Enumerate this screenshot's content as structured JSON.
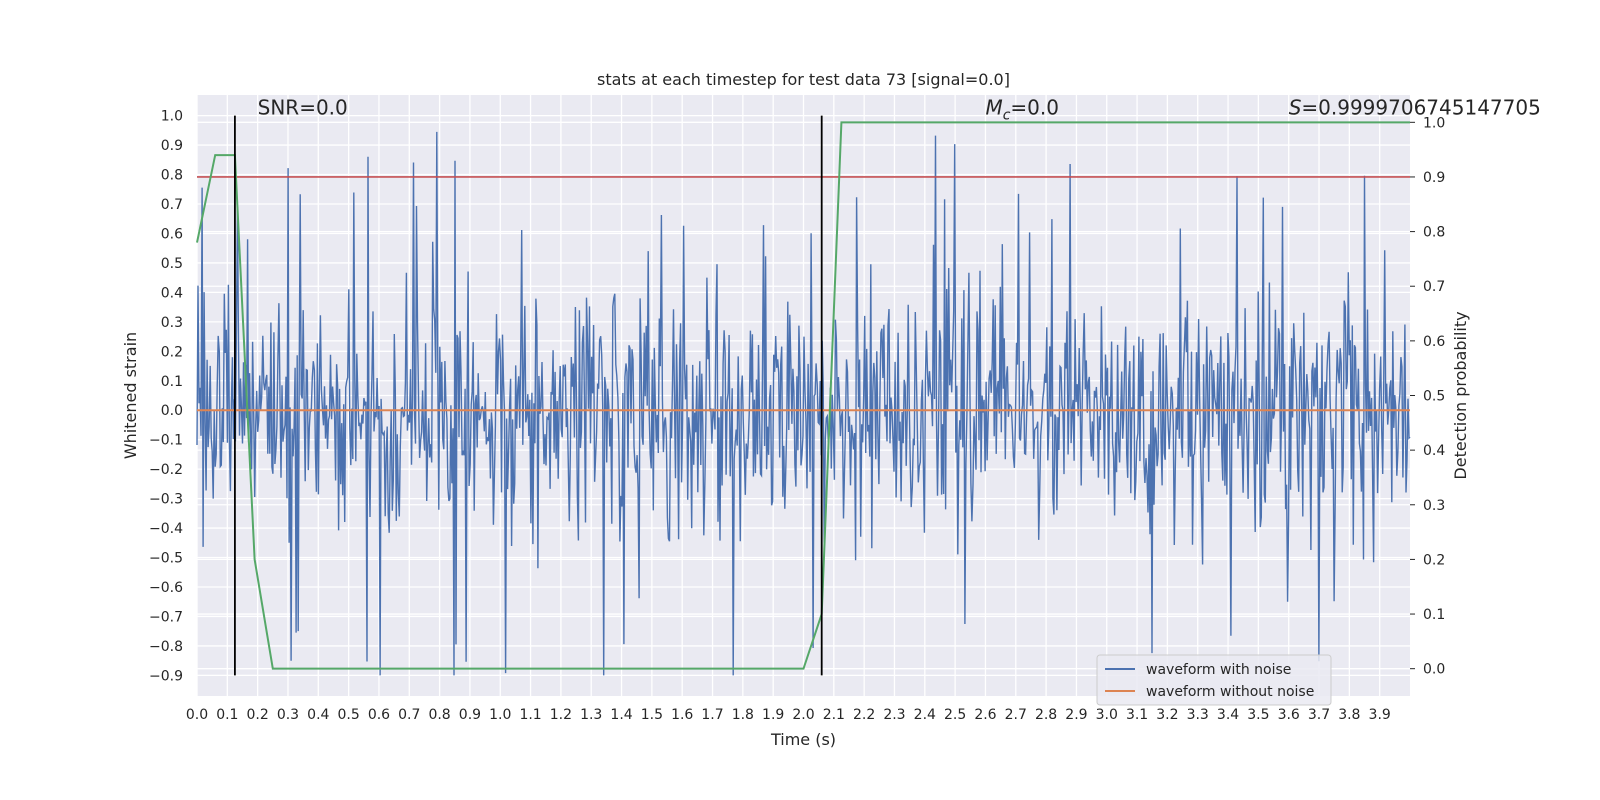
{
  "chart_data": {
    "type": "line",
    "title": "stats at each timestep for test data 73 [signal=0.0]",
    "xlabel": "Time (s)",
    "ylabel": "Whitened strain",
    "y2label": "Detection probability",
    "xlim": [
      0.0,
      4.0
    ],
    "ylim": [
      -0.97,
      1.07
    ],
    "y2lim": [
      -0.05,
      1.05
    ],
    "grid": true,
    "x_ticks": [
      "0.0",
      "0.1",
      "0.2",
      "0.3",
      "0.4",
      "0.5",
      "0.6",
      "0.7",
      "0.8",
      "0.9",
      "1.0",
      "1.1",
      "1.2",
      "1.3",
      "1.4",
      "1.5",
      "1.6",
      "1.7",
      "1.8",
      "1.9",
      "2.0",
      "2.1",
      "2.2",
      "2.3",
      "2.4",
      "2.5",
      "2.6",
      "2.7",
      "2.8",
      "2.9",
      "3.0",
      "3.1",
      "3.2",
      "3.3",
      "3.4",
      "3.5",
      "3.6",
      "3.7",
      "3.8",
      "3.9"
    ],
    "y_ticks": [
      "−0.9",
      "−0.8",
      "−0.7",
      "−0.6",
      "−0.5",
      "−0.4",
      "−0.3",
      "−0.2",
      "−0.1",
      "0.0",
      "0.1",
      "0.2",
      "0.3",
      "0.4",
      "0.5",
      "0.6",
      "0.7",
      "0.8",
      "0.9",
      "1.0"
    ],
    "y2_ticks": [
      "0.0",
      "0.1",
      "0.2",
      "0.3",
      "0.4",
      "0.5",
      "0.6",
      "0.7",
      "0.8",
      "0.9",
      "1.0"
    ],
    "annotations": {
      "snr": "SNR=0.0",
      "mc_symbol": "M",
      "mc_sub": "c",
      "mc_value": "=0.0",
      "s_symbol": "S",
      "s_value": "=0.9999706745147705"
    },
    "legend": {
      "placement": "lower-right",
      "entries": [
        "waveform with noise",
        "waveform without noise"
      ]
    },
    "series": [
      {
        "name": "waveform with noise",
        "axis": "left",
        "note": "dense white-noise strain trace, roughly uniform in [-0.9, 1.0]",
        "sample_count": 1200,
        "seed": 73
      },
      {
        "name": "waveform without noise",
        "axis": "left",
        "x": [
          0.0,
          4.0
        ],
        "values": [
          0.0,
          0.0
        ]
      },
      {
        "name": "detection probability",
        "axis": "right",
        "x": [
          0.0,
          0.06,
          0.125,
          0.19,
          0.25,
          1.0,
          1.5,
          2.0,
          2.06,
          2.125,
          4.0
        ],
        "values": [
          0.78,
          0.94,
          0.94,
          0.2,
          0.0,
          0.0,
          0.0,
          0.0,
          0.1,
          1.0,
          1.0
        ]
      },
      {
        "name": "threshold",
        "axis": "right",
        "x": [
          0.0,
          4.0
        ],
        "values": [
          0.9,
          0.9
        ]
      }
    ],
    "vertical_lines": [
      {
        "name": "event-start",
        "x": 0.125,
        "y_range": [
          -0.9,
          1.0
        ]
      },
      {
        "name": "event-end",
        "x": 2.06,
        "y_range": [
          -0.9,
          1.0
        ]
      }
    ],
    "colors": {
      "background": "#eaeaf2",
      "grid": "#ffffff",
      "noise": "#4c72b0",
      "clean": "#dd8452",
      "probability": "#55a868",
      "threshold": "#c44e52",
      "vline": "#000000"
    }
  }
}
